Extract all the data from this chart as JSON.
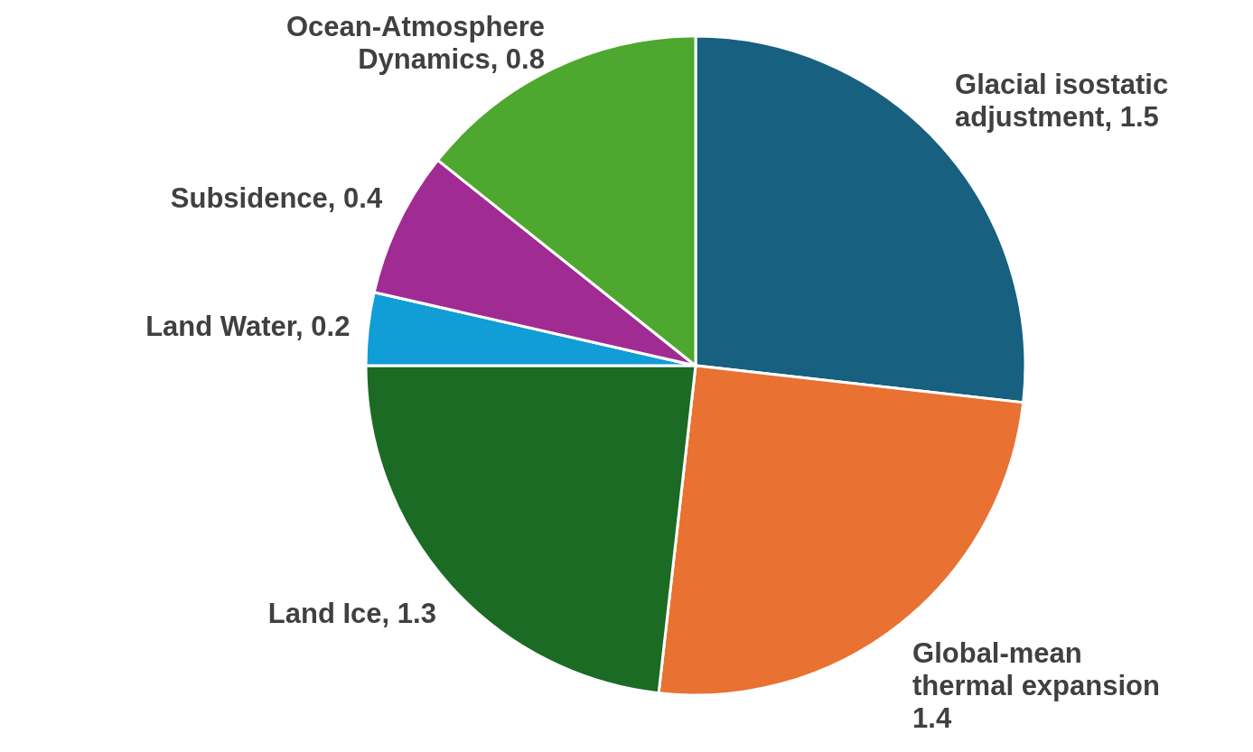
{
  "chart_data": {
    "type": "pie",
    "categories": [
      "Glacial isostatic adjustment",
      "Global-mean thermal expansion",
      "Land Ice",
      "Land Water",
      "Subsidence",
      "Ocean-Atmosphere Dynamics"
    ],
    "values": [
      1.5,
      1.4,
      1.3,
      0.2,
      0.4,
      0.8
    ],
    "colors": [
      "#17607f",
      "#e97132",
      "#1b6b24",
      "#119dd6",
      "#a02b93",
      "#4ea72e"
    ],
    "value_labels": [
      ", 1.5",
      "1.4",
      ", 1.3",
      ", 0.2",
      ", 0.4",
      ", 0.8"
    ]
  }
}
